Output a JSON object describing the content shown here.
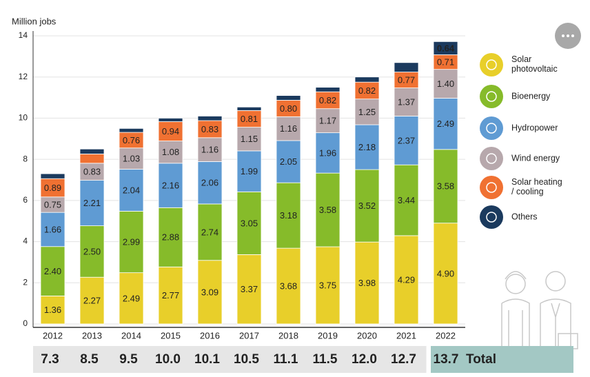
{
  "chart_data": {
    "type": "bar",
    "stacked": true,
    "y_label": "Million jobs",
    "categories": [
      "2012",
      "2013",
      "2014",
      "2015",
      "2016",
      "2017",
      "2018",
      "2019",
      "2020",
      "2021",
      "2022"
    ],
    "ylim": [
      0,
      14
    ],
    "yticks": [
      0,
      2,
      4,
      6,
      8,
      10,
      12,
      14
    ],
    "grid": true,
    "legend": "right",
    "series": [
      {
        "name": "Solar photovoltaic",
        "color": "#e8cf2a",
        "values": [
          1.36,
          2.27,
          2.49,
          2.77,
          3.09,
          3.37,
          3.68,
          3.75,
          3.98,
          4.29,
          4.9
        ],
        "value_labels": [
          "1.36",
          "2.27",
          "2.49",
          "2.77",
          "3.09",
          "3.37",
          "3.68",
          "3.75",
          "3.98",
          "4.29",
          "4.90"
        ]
      },
      {
        "name": "Bioenergy",
        "color": "#86bb2a",
        "values": [
          2.4,
          2.5,
          2.99,
          2.88,
          2.74,
          3.05,
          3.18,
          3.58,
          3.52,
          3.44,
          3.58
        ],
        "value_labels": [
          "2.40",
          "2.50",
          "2.99",
          "2.88",
          "2.74",
          "3.05",
          "3.18",
          "3.58",
          "3.52",
          "3.44",
          "3.58"
        ]
      },
      {
        "name": "Hydropower",
        "color": "#5f9bd3",
        "values": [
          1.66,
          2.21,
          2.04,
          2.16,
          2.06,
          1.99,
          2.05,
          1.96,
          2.18,
          2.37,
          2.49
        ],
        "value_labels": [
          "1.66",
          "2.21",
          "2.04",
          "2.16",
          "2.06",
          "1.99",
          "2.05",
          "1.96",
          "2.18",
          "2.37",
          "2.49"
        ]
      },
      {
        "name": "Wind energy",
        "color": "#b7a8ac",
        "values": [
          0.75,
          0.83,
          1.03,
          1.08,
          1.16,
          1.15,
          1.16,
          1.17,
          1.25,
          1.37,
          1.4
        ],
        "value_labels": [
          "0.75",
          "0.83",
          "1.03",
          "1.08",
          "1.16",
          "1.15",
          "1.16",
          "1.17",
          "1.25",
          "1.37",
          "1.40"
        ]
      },
      {
        "name": "Solar heating / cooling",
        "color": "#f07132",
        "values": [
          0.89,
          0.45,
          0.76,
          0.94,
          0.83,
          0.81,
          0.8,
          0.82,
          0.82,
          0.77,
          0.71
        ],
        "value_labels": [
          "0.89",
          null,
          "0.76",
          "0.94",
          "0.83",
          "0.81",
          "0.80",
          "0.82",
          "0.82",
          "0.77",
          "0.71"
        ]
      },
      {
        "name": "Others",
        "color": "#1b3a5e",
        "values": [
          0.24,
          0.24,
          0.19,
          0.17,
          0.22,
          0.17,
          0.23,
          0.22,
          0.25,
          0.46,
          0.64
        ],
        "value_labels": [
          null,
          null,
          null,
          null,
          null,
          null,
          null,
          null,
          null,
          null,
          "0.64"
        ]
      }
    ],
    "totals": {
      "label": "Total",
      "values": [
        7.3,
        8.5,
        9.5,
        10.0,
        10.1,
        10.5,
        11.1,
        11.5,
        12.0,
        12.7,
        13.7
      ],
      "value_labels": [
        "7.3",
        "8.5",
        "9.5",
        "10.0",
        "10.1",
        "10.5",
        "11.1",
        "11.5",
        "12.0",
        "12.7",
        "13.7"
      ]
    }
  }
}
